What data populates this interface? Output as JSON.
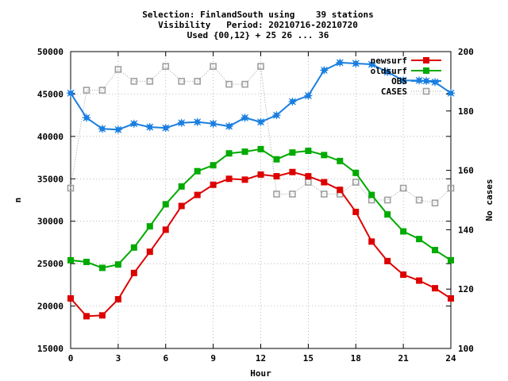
{
  "chart_data": {
    "type": "line",
    "title_lines": [
      "Selection: FinlandSouth using    39 stations",
      "Visibility   Period: 20210716-20210720",
      "Used {00,12} + 25 26 ... 36"
    ],
    "xlabel": "Hour",
    "ylabel": "n",
    "y2label": "No cases",
    "xlim": [
      0,
      24
    ],
    "ylim": [
      15000,
      50000
    ],
    "y2lim": [
      100,
      200
    ],
    "xticks": [
      0,
      3,
      6,
      9,
      12,
      15,
      18,
      21,
      24
    ],
    "yticks": [
      15000,
      20000,
      25000,
      30000,
      35000,
      40000,
      45000,
      50000
    ],
    "y2ticks": [
      100,
      120,
      140,
      160,
      180,
      200
    ],
    "grid": true,
    "legend_position": "top-right",
    "x": [
      0,
      1,
      2,
      3,
      4,
      5,
      6,
      7,
      8,
      9,
      10,
      11,
      12,
      13,
      14,
      15,
      16,
      17,
      18,
      19,
      20,
      21,
      22,
      23,
      24
    ],
    "series": [
      {
        "name": "newsurf",
        "axis": "y",
        "color": "#dd0000",
        "marker": "square",
        "values": [
          20900,
          18800,
          18900,
          20800,
          23900,
          26400,
          29000,
          31800,
          33100,
          34300,
          35000,
          34900,
          35500,
          35300,
          35800,
          35300,
          34600,
          33700,
          31100,
          27600,
          25300,
          23700,
          23000,
          22100,
          20900
        ]
      },
      {
        "name": "oldsurf",
        "axis": "y",
        "color": "#00aa00",
        "marker": "square",
        "values": [
          25400,
          25200,
          24500,
          24900,
          26900,
          29400,
          32000,
          34100,
          35900,
          36600,
          38000,
          38200,
          38500,
          37300,
          38100,
          38300,
          37800,
          37100,
          35700,
          33100,
          30800,
          28800,
          27900,
          26600,
          25400
        ]
      },
      {
        "name": "OBS",
        "axis": "y",
        "color": "#1a7fe0",
        "marker": "star",
        "values": [
          45100,
          42200,
          40900,
          40800,
          41500,
          41100,
          41000,
          41600,
          41700,
          41500,
          41200,
          42200,
          41700,
          42500,
          44100,
          44800,
          47800,
          48700,
          48600,
          48500,
          47600,
          46600,
          46600,
          46400,
          45100
        ]
      },
      {
        "name": "CASES",
        "axis": "y2",
        "color": "#a0a0a0",
        "marker": "open-square",
        "values": [
          154,
          187,
          187,
          194,
          190,
          190,
          195,
          190,
          190,
          195,
          189,
          189,
          195,
          152,
          152,
          156,
          152,
          152,
          156,
          150,
          150,
          154,
          150,
          149,
          154
        ]
      }
    ]
  }
}
